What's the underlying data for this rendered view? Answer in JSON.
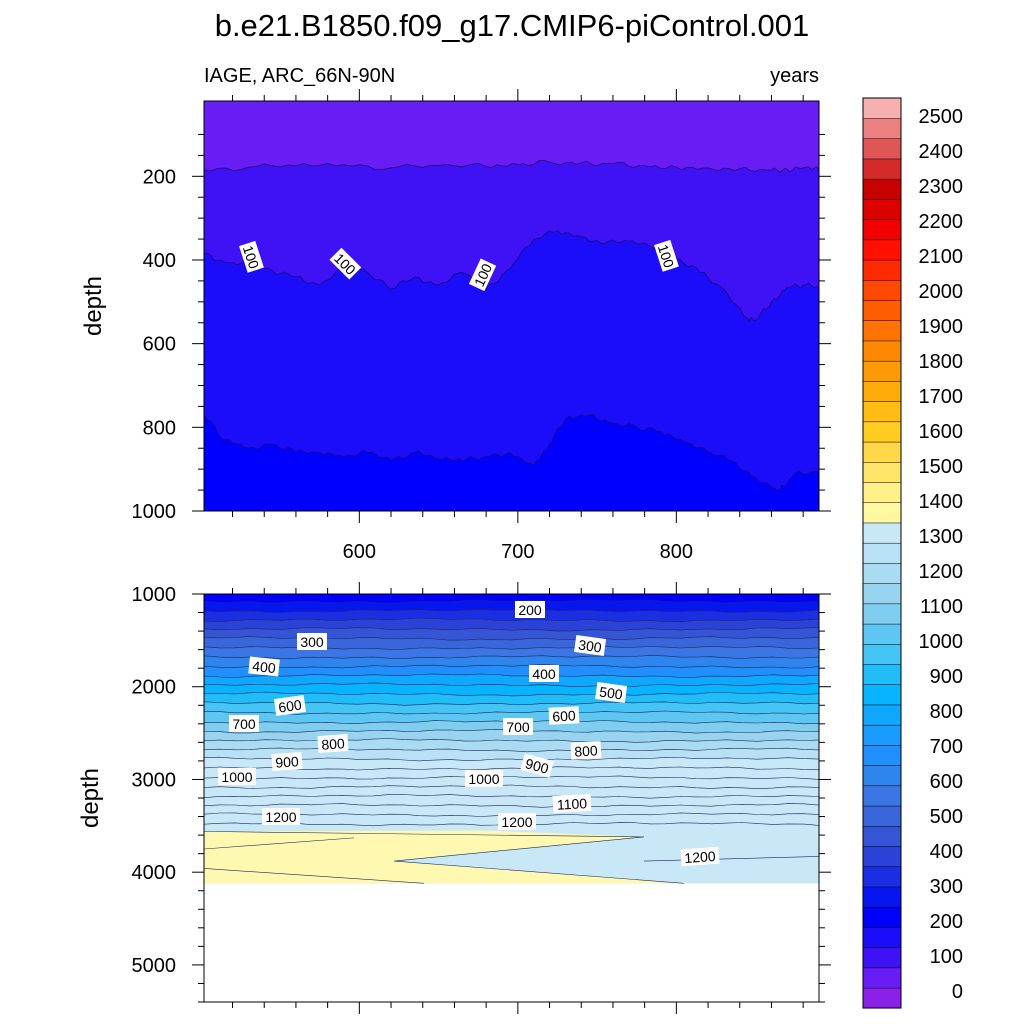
{
  "figure": {
    "title": "b.e21.B1850.f09_g17.CMIP6-piControl.001",
    "left_string": "IAGE, ARC_66N-90N",
    "right_string": "years"
  },
  "colorbar": {
    "labels": [
      "0",
      "100",
      "200",
      "300",
      "400",
      "500",
      "600",
      "700",
      "800",
      "900",
      "1000",
      "1100",
      "1200",
      "1300",
      "1400",
      "1500",
      "1600",
      "1700",
      "1800",
      "1900",
      "2000",
      "2100",
      "2200",
      "2300",
      "2400",
      "2500"
    ],
    "colors": [
      "#8b20e8",
      "#6a1cf5",
      "#3e12f5",
      "#1b0dfa",
      "#0000ff",
      "#0716f0",
      "#1a2ee4",
      "#2b42d8",
      "#3555d6",
      "#3a66dc",
      "#3b76e4",
      "#2f85ee",
      "#218fff",
      "#1a9bff",
      "#10a8ff",
      "#08b4ff",
      "#20bdf8",
      "#45c5f6",
      "#5dc6f2",
      "#7fcdef",
      "#98d4f0",
      "#a9dbf2",
      "#b9e1f5",
      "#c8e7f7",
      "#fff8a0",
      "#fff08a",
      "#ffe66a",
      "#ffd84a",
      "#ffcc22",
      "#ffbd14",
      "#ffac0a",
      "#ff9a06",
      "#ff8802",
      "#ff7400",
      "#ff5e00",
      "#ff4800",
      "#ff2a00",
      "#ff1000",
      "#f20000",
      "#dd0000",
      "#c80000",
      "#d42a2a",
      "#e05555",
      "#eb8080",
      "#f6b0b0"
    ]
  },
  "chart_data": [
    {
      "type": "heatmap",
      "panel": "upper",
      "title": "b.e21.B1850.f09_g17.CMIP6-piControl.001",
      "left_string": "IAGE, ARC_66N-90N",
      "right_string": "years",
      "ylabel": "depth",
      "xlim": [
        502,
        890
      ],
      "ylim": [
        1000,
        20
      ],
      "x_ticks": [
        "600",
        "700",
        "800"
      ],
      "y_ticks": [
        "200",
        "400",
        "600",
        "800",
        "1000"
      ],
      "contour_labels": [
        "100",
        "100",
        "100",
        "100"
      ],
      "series": [
        {
          "name": "",
          "x": [
            502,
            530,
            560,
            590,
            620,
            650,
            680,
            700,
            720,
            740,
            760,
            780,
            800,
            820,
            840,
            860,
            870,
            880,
            890
          ],
          "y": [
            185,
            178,
            175,
            172,
            180,
            174,
            176,
            172,
            166,
            168,
            170,
            175,
            178,
            180,
            182,
            185,
            183,
            180,
            184
          ]
        },
        {
          "name": "100",
          "x": [
            502,
            515,
            530,
            545,
            560,
            575,
            590,
            605,
            620,
            635,
            650,
            665,
            680,
            695,
            710,
            725,
            740,
            755,
            770,
            785,
            800,
            815,
            830,
            845,
            850,
            860,
            870,
            880,
            890
          ],
          "y": [
            385,
            405,
            410,
            425,
            440,
            460,
            420,
            430,
            470,
            440,
            460,
            430,
            470,
            420,
            350,
            330,
            345,
            360,
            355,
            370,
            395,
            430,
            470,
            540,
            545,
            500,
            465,
            460,
            465
          ]
        },
        {
          "name": "",
          "x": [
            502,
            515,
            530,
            545,
            560,
            575,
            590,
            605,
            620,
            635,
            650,
            665,
            680,
            695,
            710,
            720,
            730,
            745,
            760,
            775,
            790,
            805,
            820,
            835,
            850,
            865,
            875,
            890
          ],
          "y": [
            770,
            830,
            850,
            840,
            860,
            860,
            870,
            860,
            880,
            860,
            875,
            880,
            870,
            860,
            890,
            840,
            780,
            770,
            790,
            800,
            810,
            835,
            860,
            880,
            920,
            950,
            910,
            905
          ]
        }
      ]
    },
    {
      "type": "heatmap",
      "panel": "lower",
      "ylabel": "depth",
      "xlim": [
        502,
        890
      ],
      "ylim": [
        5400,
        1000
      ],
      "y_ticks": [
        "1000",
        "2000",
        "3000",
        "4000",
        "5000"
      ],
      "contour_labels": [
        "200",
        "300",
        "300",
        "400",
        "400",
        "500",
        "600",
        "600",
        "700",
        "700",
        "800",
        "800",
        "900",
        "900",
        "1000",
        "1000",
        "1100",
        "1200",
        "1200",
        "1200"
      ],
      "values": [
        200,
        300,
        400,
        500,
        600,
        700,
        800,
        900,
        1000,
        1100,
        1200,
        1300
      ],
      "max_depth": 4120
    }
  ]
}
